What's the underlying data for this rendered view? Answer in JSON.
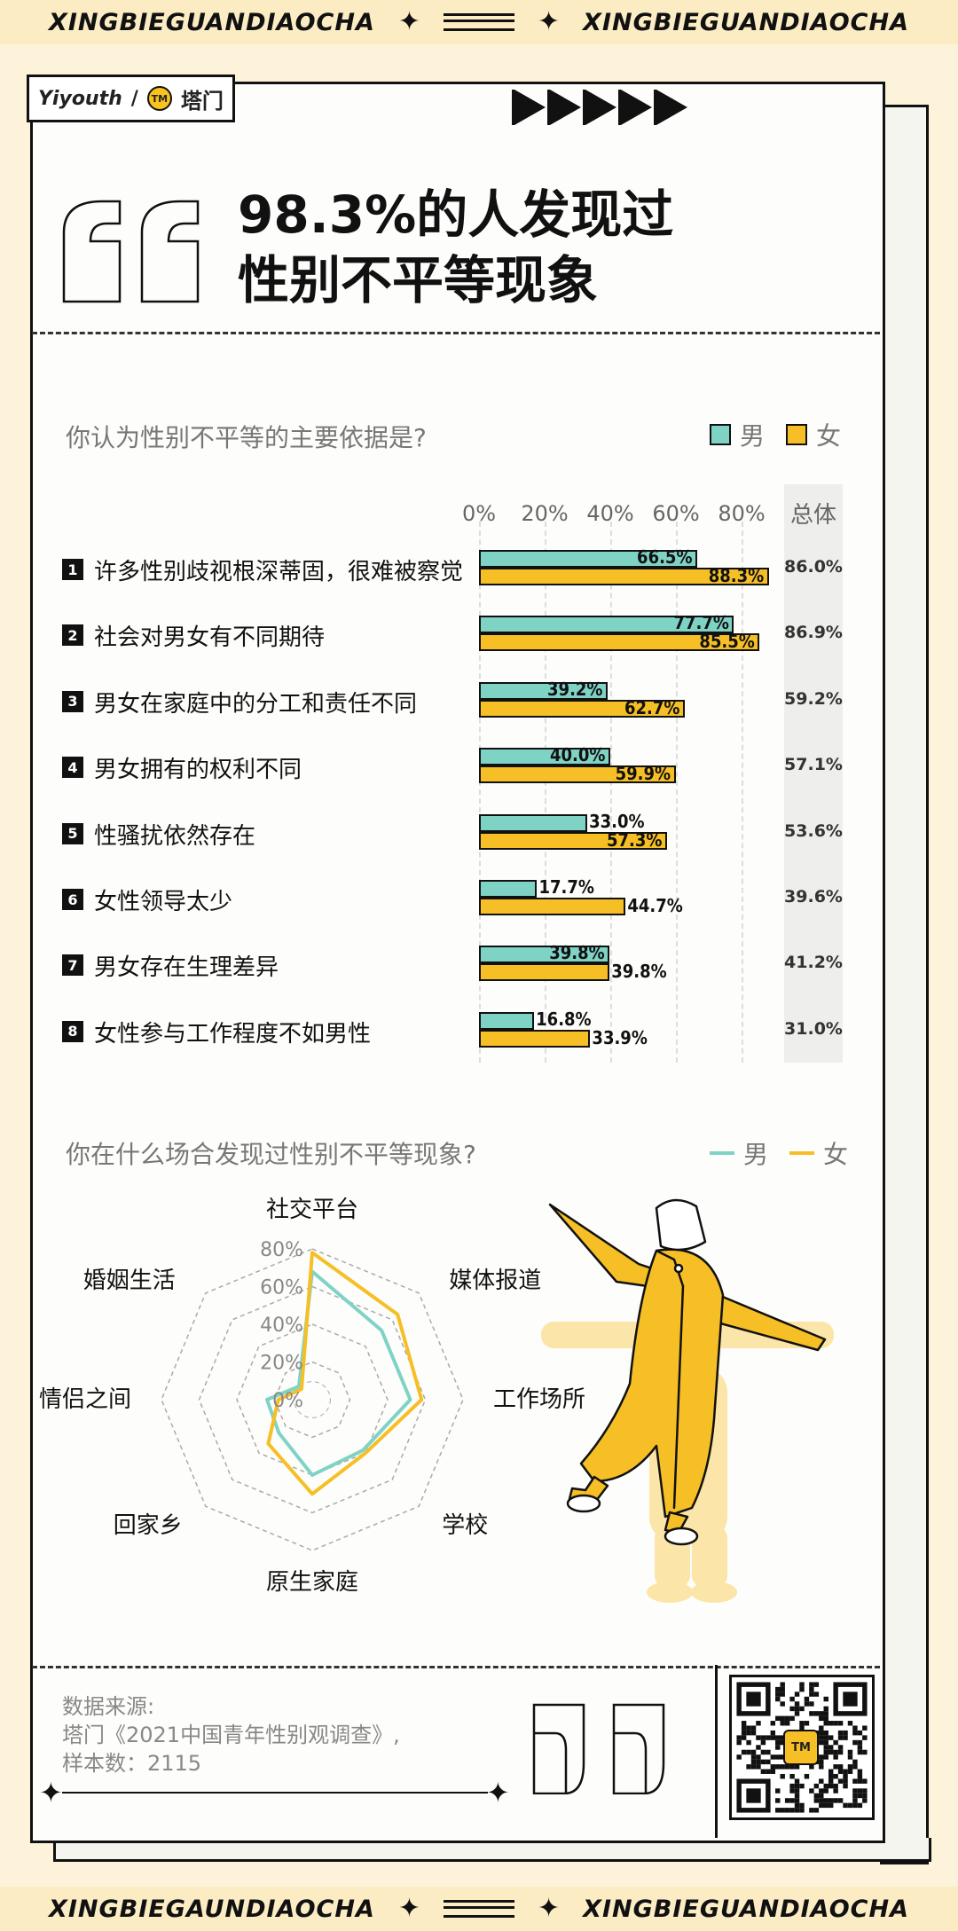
{
  "banner": {
    "text": "XINGBIEGUANDIAOCHA",
    "text_right": "XINGBIEGUANDIAOCHA",
    "text_bottom": "XINGBIEGAUNDIAOCHA",
    "text_bottom_right": "XINGBIEGUANDIAOCHA"
  },
  "logo": {
    "brand": "Yiyouth",
    "sep": "/",
    "badge": "TM",
    "name": "塔门"
  },
  "title": {
    "line1": "98.3%的人发现过",
    "line2": "性别不平等现象"
  },
  "colors": {
    "male": "#7fd3c5",
    "female": "#f6bf26",
    "card": "#fdfdfb",
    "background": "#fdf3da"
  },
  "chart_data": [
    {
      "type": "bar",
      "title": "你认为性别不平等的主要依据是?",
      "legend": [
        "男",
        "女"
      ],
      "legend_position": "top-right",
      "xlim": [
        0,
        90
      ],
      "x_ticks": [
        "0%",
        "20%",
        "40%",
        "60%",
        "80%"
      ],
      "total_header": "总体",
      "categories": [
        {
          "num": "1",
          "label": "许多性别歧视根深蒂固，很难被察觉"
        },
        {
          "num": "2",
          "label": "社会对男女有不同期待"
        },
        {
          "num": "3",
          "label": "男女在家庭中的分工和责任不同"
        },
        {
          "num": "4",
          "label": "男女拥有的权利不同"
        },
        {
          "num": "5",
          "label": "性骚扰依然存在"
        },
        {
          "num": "6",
          "label": "女性领导太少"
        },
        {
          "num": "7",
          "label": "男女存在生理差异"
        },
        {
          "num": "8",
          "label": "女性参与工作程度不如男性"
        }
      ],
      "series": [
        {
          "name": "男",
          "values": [
            66.5,
            77.7,
            39.2,
            40.0,
            33.0,
            17.7,
            39.8,
            16.8
          ],
          "labels": [
            "66.5%",
            "77.7%",
            "39.2%",
            "40.0%",
            "33.0%",
            "17.7%",
            "39.8%",
            "16.8%"
          ]
        },
        {
          "name": "女",
          "values": [
            88.3,
            85.5,
            62.7,
            59.9,
            57.3,
            44.7,
            39.8,
            33.9
          ],
          "labels": [
            "88.3%",
            "85.5%",
            "62.7%",
            "59.9%",
            "57.3%",
            "44.7%",
            "39.8%",
            "33.9%"
          ]
        }
      ],
      "totals": [
        "86.0%",
        "86.9%",
        "59.2%",
        "57.1%",
        "53.6%",
        "39.6%",
        "41.2%",
        "31.0%"
      ]
    },
    {
      "type": "radar",
      "title": "你在什么场合发现过性别不平等现象?",
      "legend": [
        "男",
        "女"
      ],
      "legend_position": "top-right",
      "axes": [
        "社交平台",
        "媒体报道",
        "工作场所",
        "学校",
        "原生家庭",
        "回家乡",
        "情侣之间",
        "婚姻生活"
      ],
      "rlim": [
        0,
        80
      ],
      "r_ticks": [
        "80%",
        "60%",
        "40%",
        "20%",
        "0%"
      ],
      "series": [
        {
          "name": "男",
          "values": [
            68,
            52,
            52,
            38,
            40,
            25,
            24,
            10
          ]
        },
        {
          "name": "女",
          "values": [
            78,
            64,
            58,
            40,
            50,
            33,
            18,
            8
          ]
        }
      ]
    }
  ],
  "source": {
    "line1": "数据来源:",
    "line2": "塔门《2021中国青年性别观调查》,",
    "line3": "样本数：2115"
  },
  "qr": {
    "badge": "TM"
  }
}
